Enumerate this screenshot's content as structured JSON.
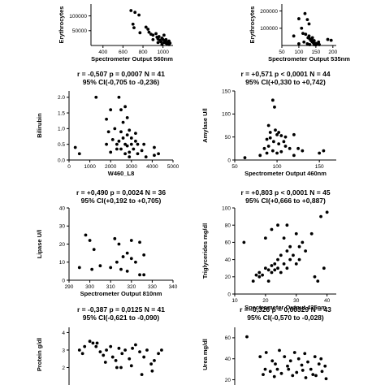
{
  "chart_data": [
    {
      "type": "scatter",
      "stat_line1": "",
      "stat_line2": "",
      "xlabel": "Spectrometer Output 560nm",
      "ylabel": "Erythrocytes",
      "xlim": [
        280,
        1100
      ],
      "ylim": [
        0,
        140000
      ],
      "xticks": [
        "400",
        "600",
        "800",
        "1000"
      ],
      "xtick_values": [
        400,
        600,
        800,
        1000
      ],
      "yticks": [
        "50000",
        "100000"
      ],
      "ytick_values": [
        50000,
        100000
      ],
      "points": [
        [
          680,
          118000
        ],
        [
          720,
          112000
        ],
        [
          760,
          103000
        ],
        [
          700,
          72000
        ],
        [
          710,
          60000
        ],
        [
          770,
          43000
        ],
        [
          830,
          62000
        ],
        [
          850,
          55000
        ],
        [
          860,
          45000
        ],
        [
          880,
          38000
        ],
        [
          900,
          35000
        ],
        [
          940,
          28000
        ],
        [
          950,
          22000
        ],
        [
          960,
          30000
        ],
        [
          970,
          18000
        ],
        [
          980,
          12000
        ],
        [
          990,
          25000
        ],
        [
          1000,
          20000
        ],
        [
          1010,
          10000
        ],
        [
          1020,
          15000
        ],
        [
          1030,
          8000
        ],
        [
          1040,
          5000
        ],
        [
          1050,
          12000
        ],
        [
          1060,
          3000
        ],
        [
          1070,
          8000
        ],
        [
          1030,
          20000
        ],
        [
          1010,
          35000
        ],
        [
          950,
          10000
        ],
        [
          990,
          3000
        ],
        [
          1060,
          15000
        ],
        [
          900,
          20000
        ],
        [
          930,
          40000
        ]
      ]
    },
    {
      "type": "scatter",
      "stat_line1": "",
      "stat_line2": "",
      "xlabel": "Spectrometer Output 535nm",
      "ylabel": "Erythrocytes",
      "xlim": [
        50,
        210
      ],
      "ylim": [
        0,
        240000
      ],
      "xticks": [
        "50",
        "100",
        "150",
        "200"
      ],
      "xtick_values": [
        50,
        100,
        150,
        200
      ],
      "yticks": [
        "100000",
        "200000"
      ],
      "ytick_values": [
        100000,
        200000
      ],
      "points": [
        [
          118,
          185000
        ],
        [
          100,
          155000
        ],
        [
          125,
          150000
        ],
        [
          130,
          125000
        ],
        [
          85,
          55000
        ],
        [
          108,
          100000
        ],
        [
          112,
          70000
        ],
        [
          120,
          65000
        ],
        [
          127,
          45000
        ],
        [
          130,
          55000
        ],
        [
          132,
          38000
        ],
        [
          135,
          30000
        ],
        [
          138,
          25000
        ],
        [
          140,
          20000
        ],
        [
          143,
          15000
        ],
        [
          145,
          28000
        ],
        [
          148,
          10000
        ],
        [
          150,
          12000
        ],
        [
          155,
          8000
        ],
        [
          160,
          5000
        ],
        [
          115,
          20000
        ],
        [
          125,
          10000
        ],
        [
          132,
          5000
        ],
        [
          138,
          38000
        ],
        [
          100,
          10000
        ],
        [
          195,
          30000
        ],
        [
          185,
          35000
        ],
        [
          145,
          5000
        ],
        [
          158,
          20000
        ],
        [
          150,
          3000
        ],
        [
          140,
          45000
        ]
      ]
    },
    {
      "type": "scatter",
      "stat_line1": "r = -0,507 p = 0,0007 N = 41",
      "stat_line2": "95% CI(-0,705 to -0,236)",
      "xlabel": "W460_L8",
      "ylabel": "Bilirubin",
      "xlim": [
        0,
        5000
      ],
      "ylim": [
        0,
        2.2
      ],
      "xticks": [
        "0",
        "1000",
        "2000",
        "3000",
        "4000",
        "5000"
      ],
      "xtick_values": [
        0,
        1000,
        2000,
        3000,
        4000,
        5000
      ],
      "yticks": [
        "0.0",
        "0.5",
        "1.0",
        "1.5",
        "2.0"
      ],
      "ytick_values": [
        0,
        0.5,
        1.0,
        1.5,
        2.0
      ],
      "points": [
        [
          1300,
          2.0
        ],
        [
          2400,
          2.0
        ],
        [
          2500,
          1.6
        ],
        [
          2700,
          1.7
        ],
        [
          2800,
          1.35
        ],
        [
          2000,
          1.6
        ],
        [
          1800,
          1.3
        ],
        [
          2600,
          1.2
        ],
        [
          2500,
          0.9
        ],
        [
          2900,
          0.95
        ],
        [
          3200,
          0.85
        ],
        [
          2800,
          0.8
        ],
        [
          3000,
          0.7
        ],
        [
          2600,
          0.7
        ],
        [
          2400,
          0.6
        ],
        [
          2300,
          0.5
        ],
        [
          2700,
          0.5
        ],
        [
          3000,
          0.5
        ],
        [
          3300,
          0.5
        ],
        [
          3600,
          0.5
        ],
        [
          2500,
          0.35
        ],
        [
          2800,
          0.45
        ],
        [
          3100,
          0.35
        ],
        [
          3500,
          0.3
        ],
        [
          2900,
          0.25
        ],
        [
          300,
          0.4
        ],
        [
          500,
          0.2
        ],
        [
          1800,
          0.5
        ],
        [
          2100,
          0.65
        ],
        [
          2300,
          0.35
        ],
        [
          2700,
          0.2
        ],
        [
          2900,
          0.1
        ],
        [
          3300,
          0.2
        ],
        [
          4100,
          0.4
        ],
        [
          4300,
          0.2
        ],
        [
          4100,
          0.15
        ],
        [
          2000,
          0.25
        ],
        [
          3700,
          0.1
        ],
        [
          1900,
          0.9
        ],
        [
          3200,
          0.6
        ],
        [
          2200,
          1.0
        ]
      ]
    },
    {
      "type": "scatter",
      "stat_line1": "r = +0,571 p < 0,0001 N = 44",
      "stat_line2": "95% CI(+0,330 to +0,742)",
      "xlabel": "Spectrometer Output 460nm",
      "ylabel": "Amylase U/l",
      "xlim": [
        50,
        170
      ],
      "ylim": [
        0,
        150
      ],
      "xticks": [
        "50",
        "100",
        "150"
      ],
      "xtick_values": [
        50,
        100,
        150
      ],
      "yticks": [
        "0",
        "50",
        "100",
        "150"
      ],
      "ytick_values": [
        0,
        50,
        100,
        150
      ],
      "points": [
        [
          95,
          130
        ],
        [
          97,
          115
        ],
        [
          90,
          75
        ],
        [
          98,
          65
        ],
        [
          92,
          60
        ],
        [
          100,
          55
        ],
        [
          105,
          53
        ],
        [
          110,
          50
        ],
        [
          88,
          45
        ],
        [
          120,
          55
        ],
        [
          96,
          40
        ],
        [
          102,
          35
        ],
        [
          85,
          25
        ],
        [
          90,
          30
        ],
        [
          110,
          30
        ],
        [
          115,
          25
        ],
        [
          95,
          20
        ],
        [
          100,
          15
        ],
        [
          105,
          18
        ],
        [
          125,
          25
        ],
        [
          130,
          20
        ],
        [
          150,
          15
        ],
        [
          155,
          20
        ],
        [
          62,
          5
        ],
        [
          80,
          10
        ],
        [
          88,
          15
        ],
        [
          120,
          10
        ],
        [
          102,
          60
        ],
        [
          92,
          48
        ],
        [
          108,
          40
        ]
      ]
    },
    {
      "type": "scatter",
      "stat_line1": "r = +0,490 p = 0,0024 N = 36",
      "stat_line2": "95% CI(+0,192 to +0,705)",
      "xlabel": "Spectrometer Output 810nm",
      "ylabel": "Lipase U/l",
      "xlim": [
        290,
        340
      ],
      "ylim": [
        0,
        40
      ],
      "xticks": [
        "290",
        "300",
        "310",
        "320",
        "330",
        "340"
      ],
      "xtick_values": [
        290,
        300,
        310,
        320,
        330,
        340
      ],
      "yticks": [
        "0",
        "10",
        "20",
        "30",
        "40"
      ],
      "ytick_values": [
        0,
        10,
        20,
        30,
        40
      ],
      "points": [
        [
          298,
          25
        ],
        [
          300,
          22
        ],
        [
          302,
          17
        ],
        [
          312,
          23
        ],
        [
          314,
          20
        ],
        [
          316,
          13
        ],
        [
          313,
          10
        ],
        [
          318,
          15
        ],
        [
          320,
          22
        ],
        [
          324,
          21
        ],
        [
          326,
          14
        ],
        [
          322,
          10
        ],
        [
          315,
          6
        ],
        [
          318,
          5
        ],
        [
          310,
          7
        ],
        [
          305,
          8
        ],
        [
          295,
          7
        ],
        [
          301,
          6
        ],
        [
          324,
          3
        ],
        [
          326,
          3
        ],
        [
          320,
          12
        ]
      ]
    },
    {
      "type": "scatter",
      "stat_line1": "r = +0,803 p < 0,0001 N = 45",
      "stat_line2": "95% CI(+0,666 to +0,887)",
      "xlabel": "Spectrometer Output 435nm",
      "ylabel": "Triglycerides mg/dl",
      "xlim": [
        10,
        43
      ],
      "ylim": [
        0,
        100
      ],
      "xticks": [
        "10",
        "20",
        "30",
        "40"
      ],
      "xtick_values": [
        10,
        20,
        30,
        40
      ],
      "yticks": [
        "0",
        "20",
        "40",
        "60",
        "80",
        "100"
      ],
      "ytick_values": [
        0,
        20,
        40,
        60,
        80,
        100
      ],
      "points": [
        [
          13,
          60
        ],
        [
          16,
          15
        ],
        [
          18,
          25
        ],
        [
          19,
          22
        ],
        [
          20,
          30
        ],
        [
          21,
          28
        ],
        [
          22,
          33
        ],
        [
          22,
          25
        ],
        [
          23,
          35
        ],
        [
          24,
          30
        ],
        [
          24,
          40
        ],
        [
          25,
          45
        ],
        [
          26,
          35
        ],
        [
          27,
          50
        ],
        [
          27,
          80
        ],
        [
          28,
          40
        ],
        [
          29,
          45
        ],
        [
          30,
          70
        ],
        [
          31,
          55
        ],
        [
          32,
          60
        ],
        [
          33,
          50
        ],
        [
          35,
          70
        ],
        [
          36,
          20
        ],
        [
          37,
          15
        ],
        [
          38,
          90
        ],
        [
          39,
          30
        ],
        [
          40,
          95
        ],
        [
          24,
          80
        ],
        [
          22,
          75
        ],
        [
          26,
          65
        ],
        [
          20,
          65
        ],
        [
          18,
          20
        ],
        [
          23,
          28
        ],
        [
          25,
          25
        ],
        [
          27,
          30
        ],
        [
          30,
          35
        ],
        [
          31,
          40
        ],
        [
          21,
          15
        ],
        [
          17,
          22
        ],
        [
          28,
          55
        ]
      ]
    },
    {
      "type": "scatter",
      "stat_line1": "r = -0,387 p = 0,0125 N = 41",
      "stat_line2": "95% CI(-0,621 to -0,090)",
      "xlabel": "",
      "ylabel": "Protein g/dl",
      "xlim": [
        0,
        10
      ],
      "ylim": [
        1,
        4.3
      ],
      "xticks": [],
      "xtick_values": [],
      "yticks": [
        "2",
        "3",
        "4"
      ],
      "ytick_values": [
        2,
        3,
        4
      ],
      "points": [
        [
          1.0,
          3.0
        ],
        [
          1.3,
          2.8
        ],
        [
          1.5,
          3.2
        ],
        [
          2.0,
          3.5
        ],
        [
          2.3,
          3.4
        ],
        [
          2.6,
          3.2
        ],
        [
          3.0,
          2.9
        ],
        [
          3.3,
          2.7
        ],
        [
          3.6,
          3.0
        ],
        [
          4.0,
          3.2
        ],
        [
          4.2,
          2.6
        ],
        [
          4.5,
          2.4
        ],
        [
          4.8,
          3.1
        ],
        [
          5.1,
          2.8
        ],
        [
          5.4,
          3.0
        ],
        [
          5.8,
          2.5
        ],
        [
          6.1,
          3.1
        ],
        [
          6.4,
          3.3
        ],
        [
          6.8,
          2.9
        ],
        [
          7.2,
          2.6
        ],
        [
          7.5,
          3.0
        ],
        [
          7.9,
          2.2
        ],
        [
          8.2,
          2.4
        ],
        [
          8.6,
          2.8
        ],
        [
          8.9,
          3.0
        ],
        [
          3.5,
          2.3
        ],
        [
          5.0,
          2.0
        ],
        [
          6.0,
          2.1
        ],
        [
          7.0,
          1.6
        ],
        [
          8.0,
          1.8
        ],
        [
          2.7,
          3.4
        ],
        [
          4.6,
          2.0
        ]
      ]
    },
    {
      "type": "scatter",
      "stat_line1": "r = -0,326 p = 0,00329 N = 43",
      "stat_line2": "95% CI(-0,570 to -0,028)",
      "xlabel": "",
      "ylabel": "Urea mg/dl",
      "xlim": [
        0,
        10
      ],
      "ylim": [
        15,
        70
      ],
      "xticks": [],
      "xtick_values": [],
      "yticks": [
        "20",
        "40",
        "60"
      ],
      "ytick_values": [
        20,
        40,
        60
      ],
      "points": [
        [
          1.2,
          61
        ],
        [
          2.5,
          42
        ],
        [
          3.1,
          46
        ],
        [
          3.7,
          38
        ],
        [
          4.0,
          35
        ],
        [
          4.4,
          48
        ],
        [
          4.9,
          42
        ],
        [
          5.2,
          33
        ],
        [
          5.5,
          38
        ],
        [
          5.9,
          46
        ],
        [
          6.3,
          40
        ],
        [
          6.6,
          34
        ],
        [
          6.9,
          45
        ],
        [
          7.2,
          37
        ],
        [
          7.5,
          30
        ],
        [
          7.9,
          42
        ],
        [
          8.3,
          35
        ],
        [
          8.6,
          28
        ],
        [
          8.9,
          33
        ],
        [
          2.8,
          25
        ],
        [
          3.5,
          28
        ],
        [
          4.6,
          26
        ],
        [
          5.7,
          24
        ],
        [
          6.1,
          27
        ],
        [
          7.0,
          22
        ],
        [
          8.0,
          24
        ],
        [
          9.0,
          21
        ],
        [
          3.0,
          30
        ],
        [
          4.2,
          30
        ],
        [
          6.7,
          29
        ],
        [
          5.3,
          30
        ],
        [
          7.7,
          25
        ],
        [
          3.9,
          23
        ],
        [
          8.5,
          40
        ]
      ]
    }
  ]
}
